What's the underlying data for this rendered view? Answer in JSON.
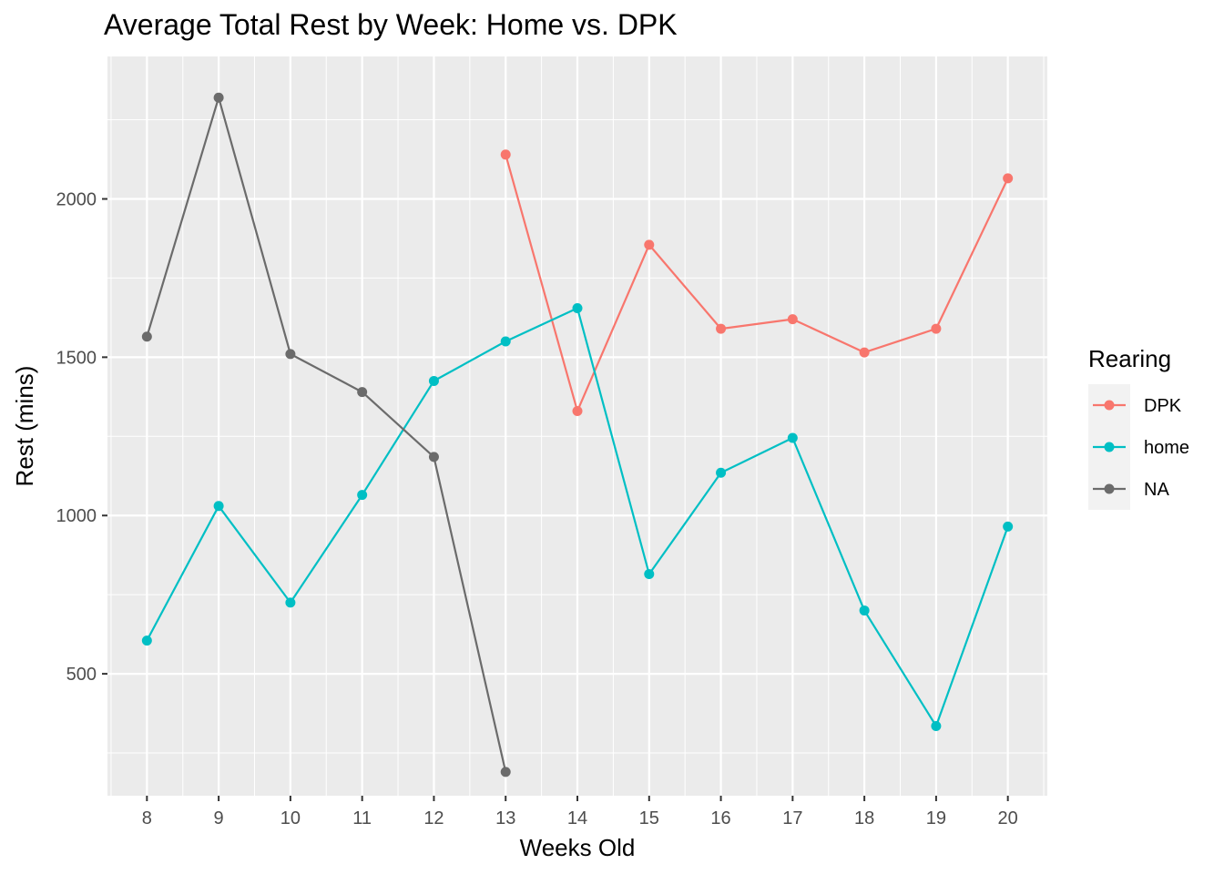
{
  "chart_data": {
    "type": "line",
    "title": "Average Total Rest by Week: Home vs. DPK",
    "xlabel": "Weeks Old",
    "ylabel": "Rest (mins)",
    "x": [
      8,
      9,
      10,
      11,
      12,
      13,
      14,
      15,
      16,
      17,
      18,
      19,
      20
    ],
    "xlim": [
      7.45,
      20.55
    ],
    "ylim": [
      115,
      2450
    ],
    "y_ticks": [
      500,
      1000,
      1500,
      2000
    ],
    "grid": true,
    "legend": {
      "title": "Rearing",
      "position": "right"
    },
    "series": [
      {
        "name": "DPK",
        "color": "#F8766D",
        "points": [
          {
            "x": 13,
            "y": 2140
          },
          {
            "x": 14,
            "y": 1330
          },
          {
            "x": 15,
            "y": 1855
          },
          {
            "x": 16,
            "y": 1590
          },
          {
            "x": 17,
            "y": 1620
          },
          {
            "x": 18,
            "y": 1515
          },
          {
            "x": 19,
            "y": 1590
          },
          {
            "x": 20,
            "y": 2065
          }
        ]
      },
      {
        "name": "home",
        "color": "#00BFC4",
        "points": [
          {
            "x": 8,
            "y": 605
          },
          {
            "x": 9,
            "y": 1030
          },
          {
            "x": 10,
            "y": 725
          },
          {
            "x": 11,
            "y": 1065
          },
          {
            "x": 12,
            "y": 1425
          },
          {
            "x": 13,
            "y": 1550
          },
          {
            "x": 14,
            "y": 1655
          },
          {
            "x": 15,
            "y": 815
          },
          {
            "x": 16,
            "y": 1135
          },
          {
            "x": 17,
            "y": 1245
          },
          {
            "x": 18,
            "y": 700
          },
          {
            "x": 19,
            "y": 335
          },
          {
            "x": 20,
            "y": 965
          }
        ]
      },
      {
        "name": "NA",
        "color": "#6B6B6B",
        "points": [
          {
            "x": 8,
            "y": 1565
          },
          {
            "x": 9,
            "y": 2320
          },
          {
            "x": 10,
            "y": 1510
          },
          {
            "x": 11,
            "y": 1390
          },
          {
            "x": 12,
            "y": 1185
          },
          {
            "x": 13,
            "y": 190
          }
        ]
      }
    ]
  }
}
